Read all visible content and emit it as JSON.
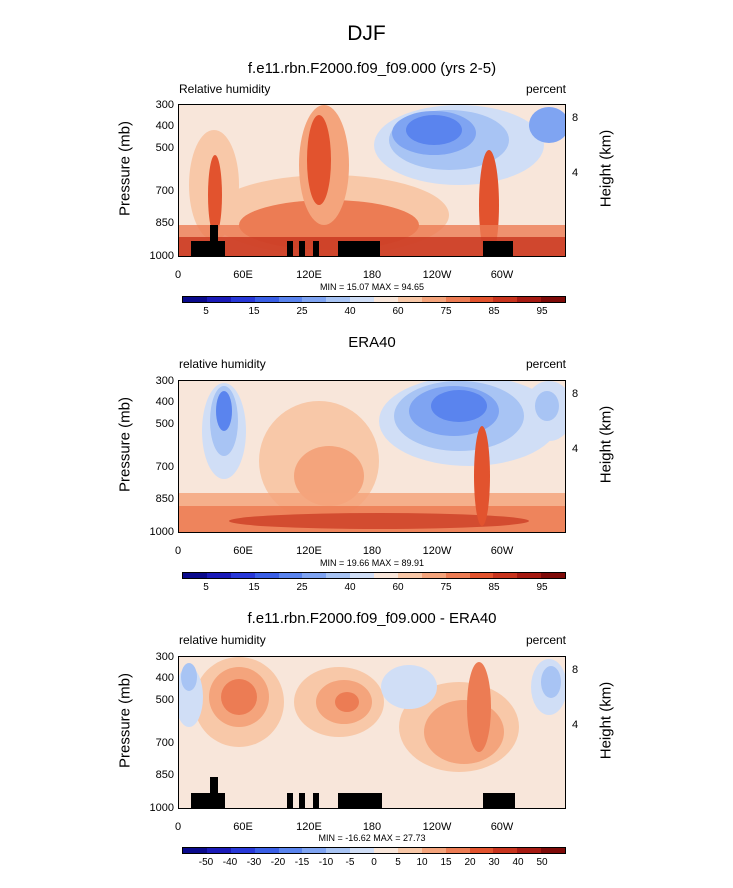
{
  "figure_title": "DJF",
  "chart_data": [
    {
      "type": "heatmap",
      "title": "f.e11.rbn.F2000.f09_f09.000 (yrs 2-5)",
      "left_label": "Relative humidity",
      "right_label": "percent",
      "ylabel": "Pressure (mb)",
      "ylabel_right": "Height (km)",
      "x_ticks": [
        "0",
        "60E",
        "120E",
        "180",
        "120W",
        "60W"
      ],
      "y_ticks": [
        "300",
        "400",
        "500",
        "700",
        "850",
        "1000"
      ],
      "y_ticks_right": [
        "8",
        "4"
      ],
      "min_max_text": "MIN =  15.07  MAX =  94.65",
      "colorbar_labels": [
        "5",
        "15",
        "25",
        "40",
        "60",
        "75",
        "85",
        "95"
      ]
    },
    {
      "type": "heatmap",
      "title": "ERA40",
      "left_label": "relative humidity",
      "right_label": "percent",
      "ylabel": "Pressure (mb)",
      "ylabel_right": "Height (km)",
      "x_ticks": [
        "0",
        "60E",
        "120E",
        "180",
        "120W",
        "60W"
      ],
      "y_ticks": [
        "300",
        "400",
        "500",
        "700",
        "850",
        "1000"
      ],
      "y_ticks_right": [
        "8",
        "4"
      ],
      "min_max_text": "MIN =  19.66  MAX =  89.91",
      "colorbar_labels": [
        "5",
        "15",
        "25",
        "40",
        "60",
        "75",
        "85",
        "95"
      ]
    },
    {
      "type": "heatmap",
      "title": "f.e11.rbn.F2000.f09_f09.000 - ERA40",
      "left_label": "relative humidity",
      "right_label": "percent",
      "ylabel": "Pressure (mb)",
      "ylabel_right": "Height (km)",
      "x_ticks": [
        "0",
        "60E",
        "120E",
        "180",
        "120W",
        "60W"
      ],
      "y_ticks": [
        "300",
        "400",
        "500",
        "700",
        "850",
        "1000"
      ],
      "y_ticks_right": [
        "8",
        "4"
      ],
      "min_max_text": "MIN = -16.62  MAX =  27.73",
      "colorbar_labels": [
        "-50",
        "-40",
        "-30",
        "-20",
        "-15",
        "-10",
        "-5",
        "0",
        "5",
        "10",
        "15",
        "20",
        "30",
        "40",
        "50"
      ]
    }
  ],
  "colors": {
    "palette": [
      "#0a0a8c",
      "#1a1ab8",
      "#2838d8",
      "#3a5fe6",
      "#5a84ee",
      "#7fa4f2",
      "#a8c4f4",
      "#d0def6",
      "#f8e6da",
      "#f8c8a8",
      "#f4a47c",
      "#ec7c54",
      "#e2532e",
      "#c8341e",
      "#a61a12",
      "#7e0a08"
    ],
    "terrain": "#000000"
  }
}
